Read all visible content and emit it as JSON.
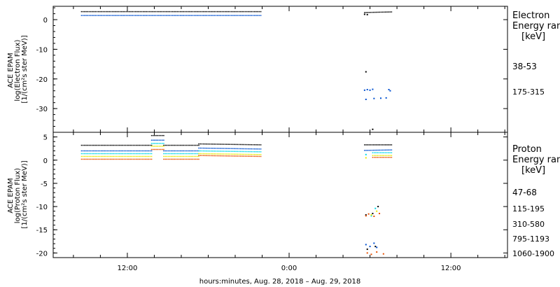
{
  "chart_data": [
    {
      "type": "scatter",
      "title": "",
      "ylabel_lines": [
        "ACE EPAM",
        "log(Electron Flux)",
        "[1/(cm²s ster MeV)]"
      ],
      "ylim": [
        -38,
        4.5
      ],
      "yticks": [
        0,
        -10,
        -20,
        -30
      ],
      "legend_title_lines": [
        "Electron",
        "Energy ranges",
        "[keV]"
      ],
      "series": [
        {
          "name": "38-53",
          "color": "#000000",
          "segments": [
            {
              "x0": 8.6,
              "x1": 21.9,
              "y0": 2.7,
              "y1": 2.7
            },
            {
              "x0": 29.6,
              "x1": 31.6,
              "y0": 2.4,
              "y1": 2.6
            }
          ],
          "points": [
            [
              29.6,
              1.8
            ],
            [
              29.8,
              1.7
            ],
            [
              29.7,
              -17.6
            ],
            [
              30.2,
              -37.0
            ]
          ]
        },
        {
          "name": "175-315",
          "color": "#0050d0",
          "segments": [
            {
              "x0": 8.6,
              "x1": 21.9,
              "y0": 1.4,
              "y1": 1.4
            }
          ],
          "points": [
            [
              29.6,
              -23.8
            ],
            [
              29.8,
              -23.6
            ],
            [
              30.0,
              -23.8
            ],
            [
              30.2,
              -23.5
            ],
            [
              29.7,
              -26.9
            ],
            [
              30.3,
              -26.6
            ],
            [
              30.8,
              -26.5
            ],
            [
              31.2,
              -26.4
            ],
            [
              31.4,
              -23.6
            ],
            [
              31.5,
              -24.0
            ]
          ]
        }
      ]
    },
    {
      "type": "scatter",
      "title": "",
      "ylabel_lines": [
        "ACE EPAM",
        "log(Proton Flux)",
        "[1/(cm²s ster MeV)]"
      ],
      "ylim": [
        -21,
        6
      ],
      "yticks": [
        5,
        0,
        -5,
        -10,
        -15,
        -20
      ],
      "legend_title_lines": [
        "Proton",
        "Energy ranges",
        "[keV]"
      ],
      "series": [
        {
          "name": "47-68",
          "color": "#000000",
          "segments": [
            {
              "x0": 8.6,
              "x1": 13.8,
              "y0": 3.2,
              "y1": 3.2
            },
            {
              "x0": 13.8,
              "x1": 14.7,
              "y0": 5.3,
              "y1": 5.3
            },
            {
              "x0": 14.7,
              "x1": 17.3,
              "y0": 3.2,
              "y1": 3.2
            },
            {
              "x0": 17.3,
              "x1": 21.9,
              "y0": 3.5,
              "y1": 3.3
            },
            {
              "x0": 29.6,
              "x1": 31.6,
              "y0": 3.3,
              "y1": 3.3
            }
          ],
          "points": [
            [
              29.7,
              -11.8
            ],
            [
              30.2,
              -11.5
            ],
            [
              30.6,
              -10.0
            ],
            [
              29.8,
              -19.2
            ],
            [
              30.4,
              -18.6
            ]
          ]
        },
        {
          "name": "115-195",
          "color": "#0050d0",
          "segments": [
            {
              "x0": 8.6,
              "x1": 13.8,
              "y0": 2.0,
              "y1": 2.0
            },
            {
              "x0": 13.8,
              "x1": 14.7,
              "y0": 4.3,
              "y1": 4.3
            },
            {
              "x0": 14.7,
              "x1": 17.3,
              "y0": 2.0,
              "y1": 2.0
            },
            {
              "x0": 17.3,
              "x1": 21.9,
              "y0": 2.6,
              "y1": 2.4
            },
            {
              "x0": 29.6,
              "x1": 31.6,
              "y0": 2.1,
              "y1": 2.2
            }
          ],
          "points": [
            [
              29.7,
              -18.2
            ],
            [
              30.0,
              -18.6
            ],
            [
              30.3,
              -17.9
            ],
            [
              30.5,
              -18.8
            ]
          ]
        },
        {
          "name": "310-580",
          "color": "#00d8e8",
          "segments": [
            {
              "x0": 8.6,
              "x1": 13.8,
              "y0": 1.4,
              "y1": 1.4
            },
            {
              "x0": 13.8,
              "x1": 14.7,
              "y0": 3.6,
              "y1": 3.6
            },
            {
              "x0": 14.7,
              "x1": 17.3,
              "y0": 1.4,
              "y1": 1.4
            },
            {
              "x0": 17.3,
              "x1": 21.9,
              "y0": 2.0,
              "y1": 1.8
            },
            {
              "x0": 30.2,
              "x1": 31.6,
              "y0": 1.6,
              "y1": 1.6
            }
          ],
          "points": [
            [
              29.7,
              1.2
            ],
            [
              30.4,
              -10.4
            ],
            [
              30.1,
              -12.0
            ]
          ]
        },
        {
          "name": "795-1193",
          "color": "#e8e800",
          "segments": [
            {
              "x0": 8.6,
              "x1": 13.8,
              "y0": 0.8,
              "y1": 0.8
            },
            {
              "x0": 13.8,
              "x1": 14.7,
              "y0": 3.0,
              "y1": 3.0
            },
            {
              "x0": 14.7,
              "x1": 17.3,
              "y0": 0.8,
              "y1": 0.8
            },
            {
              "x0": 17.3,
              "x1": 21.9,
              "y0": 1.4,
              "y1": 1.2
            },
            {
              "x0": 30.2,
              "x1": 31.6,
              "y0": 1.0,
              "y1": 1.0
            }
          ],
          "points": [
            [
              29.7,
              0.5
            ],
            [
              30.1,
              -11.8
            ],
            [
              30.5,
              -11.0
            ]
          ]
        },
        {
          "name": "1060-1900",
          "color": "#e85000",
          "segments": [
            {
              "x0": 8.6,
              "x1": 13.8,
              "y0": 0.2,
              "y1": 0.2
            },
            {
              "x0": 13.8,
              "x1": 14.7,
              "y0": 2.3,
              "y1": 2.3
            },
            {
              "x0": 14.7,
              "x1": 17.3,
              "y0": 0.2,
              "y1": 0.2
            },
            {
              "x0": 17.3,
              "x1": 21.9,
              "y0": 1.0,
              "y1": 0.8
            },
            {
              "x0": 30.2,
              "x1": 31.6,
              "y0": 0.6,
              "y1": 0.6
            }
          ],
          "points": [
            [
              29.7,
              -12.0
            ],
            [
              29.9,
              -11.6
            ],
            [
              30.3,
              -12.1
            ],
            [
              30.7,
              -11.5
            ],
            [
              29.8,
              -20.0
            ],
            [
              30.1,
              -20.3
            ],
            [
              30.5,
              -19.8
            ],
            [
              31.0,
              -20.2
            ]
          ]
        }
      ]
    }
  ],
  "x_axis": {
    "unit": "hours since 00:00 Aug. 28, 2018",
    "range": [
      6.5,
      40.2
    ],
    "major_ticks": [
      12,
      24,
      36
    ],
    "tick_labels": [
      "12:00",
      "0:00",
      "12:00"
    ],
    "minor_step": 2,
    "label": "hours:minutes, Aug. 28, 2018 – Aug. 29, 2018"
  }
}
